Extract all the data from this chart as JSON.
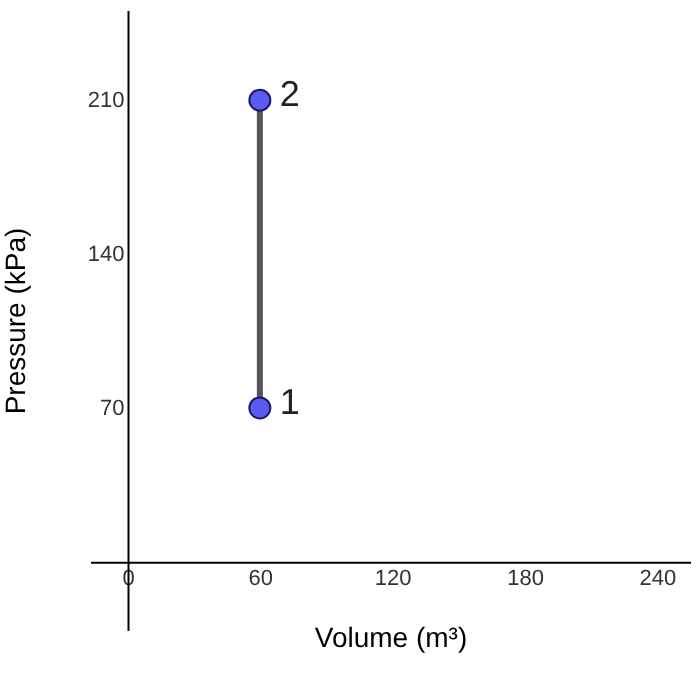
{
  "chart_data": {
    "type": "line",
    "xlabel": "Volume (m³)",
    "ylabel": "Pressure (kPa)",
    "x": [
      60,
      60
    ],
    "series": [
      {
        "color": "#555555",
        "values": [
          70,
          210
        ]
      },
      {
        "type": "scatter",
        "color": "#5b5bf0",
        "values": [
          70,
          210
        ],
        "marker": "circle"
      }
    ],
    "annotations": [
      {
        "text": "1",
        "x": 60,
        "y": 70
      },
      {
        "text": "2",
        "x": 60,
        "y": 210
      }
    ],
    "xlim": [
      -17,
      255
    ],
    "ylim": [
      -31,
      251
    ],
    "xticks": [
      0,
      60,
      120,
      180,
      240
    ],
    "yticks": [
      70,
      140,
      210
    ],
    "grid": false,
    "line_style": "solid"
  }
}
